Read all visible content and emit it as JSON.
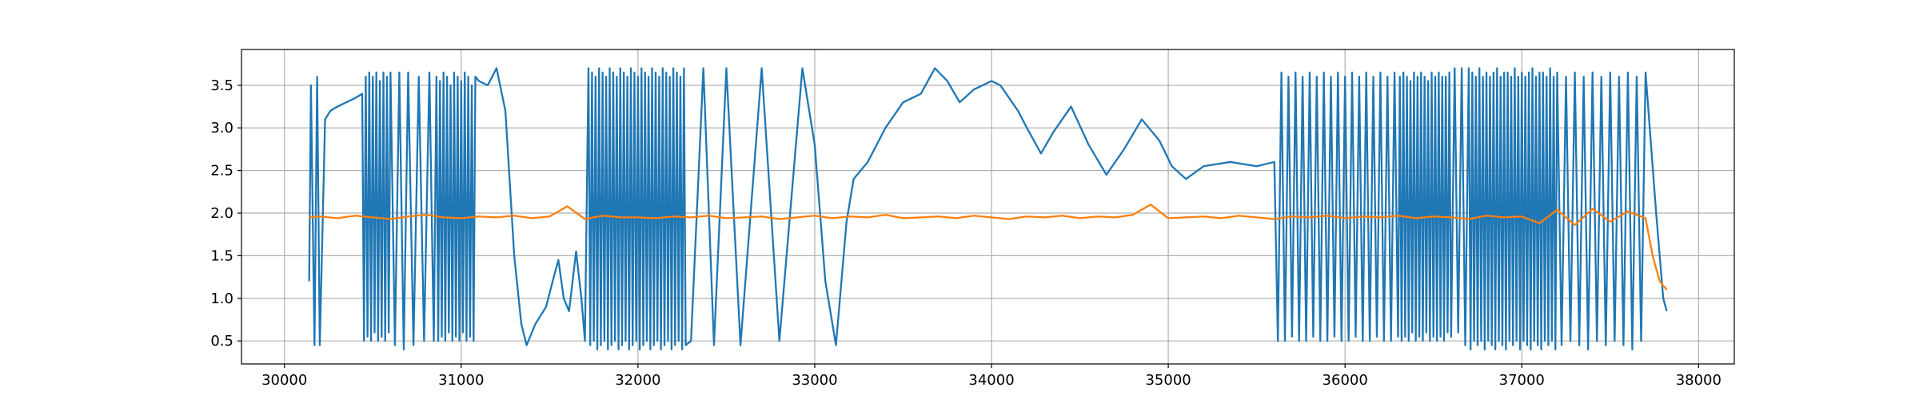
{
  "chart_data": {
    "type": "line",
    "xlim": [
      29757,
      38202
    ],
    "ylim": [
      0.23,
      3.92
    ],
    "xticks": [
      30000,
      31000,
      32000,
      33000,
      34000,
      35000,
      36000,
      37000,
      38000
    ],
    "yticks": [
      0.5,
      {
        "value": 1,
        "label": "1.0"
      },
      1.5,
      {
        "value": 2,
        "label": "2.0"
      },
      2.5,
      {
        "value": 3,
        "label": "3.0"
      },
      3.5
    ],
    "grid": true,
    "series": [
      {
        "color": "#1f77b4",
        "x": [
          30140,
          30150,
          30170,
          30185,
          30200,
          30230,
          30260,
          30300,
          30350,
          30400,
          30440,
          30450,
          30460,
          30470,
          30480,
          30490,
          30500,
          30510,
          30520,
          30530,
          30540,
          30550,
          30560,
          30570,
          30580,
          30590,
          30600,
          30625,
          30650,
          30675,
          30700,
          30730,
          30760,
          30790,
          30820,
          30845,
          30860,
          30870,
          30880,
          30890,
          30900,
          30910,
          30920,
          30930,
          30940,
          30950,
          30960,
          30970,
          30980,
          30990,
          31000,
          31010,
          31020,
          31030,
          31040,
          31050,
          31060,
          31070,
          31080,
          31100,
          31150,
          31200,
          31250,
          31300,
          31340,
          31370,
          31420,
          31480,
          31530,
          31550,
          31580,
          31610,
          31650,
          31680,
          31700,
          31720,
          31730,
          31740,
          31750,
          31760,
          31770,
          31780,
          31790,
          31800,
          31810,
          31820,
          31830,
          31840,
          31850,
          31860,
          31870,
          31880,
          31890,
          31900,
          31910,
          31920,
          31930,
          31940,
          31950,
          31960,
          31970,
          31980,
          31990,
          32000,
          32010,
          32020,
          32030,
          32040,
          32050,
          32060,
          32070,
          32080,
          32090,
          32100,
          32110,
          32120,
          32130,
          32140,
          32150,
          32160,
          32170,
          32180,
          32190,
          32200,
          32210,
          32220,
          32230,
          32240,
          32250,
          32260,
          32270,
          32300,
          32370,
          32430,
          32500,
          32580,
          32700,
          32800,
          32930,
          33000,
          33060,
          33120,
          33180,
          33220,
          33300,
          33400,
          33500,
          33600,
          33680,
          33750,
          33820,
          33900,
          34000,
          34050,
          34150,
          34200,
          34280,
          34350,
          34450,
          34550,
          34650,
          34750,
          34850,
          34950,
          35020,
          35100,
          35200,
          35350,
          35500,
          35600,
          35620,
          35640,
          35660,
          35680,
          35700,
          35720,
          35740,
          35760,
          35780,
          35800,
          35820,
          35840,
          35860,
          35880,
          35900,
          35920,
          35940,
          35960,
          35980,
          36000,
          36020,
          36040,
          36060,
          36080,
          36100,
          36120,
          36140,
          36160,
          36180,
          36200,
          36220,
          36240,
          36260,
          36280,
          36300,
          36310,
          36320,
          36330,
          36340,
          36350,
          36360,
          36370,
          36380,
          36390,
          36400,
          36410,
          36420,
          36430,
          36440,
          36450,
          36460,
          36470,
          36480,
          36490,
          36500,
          36510,
          36520,
          36530,
          36540,
          36550,
          36560,
          36570,
          36580,
          36590,
          36600,
          36620,
          36640,
          36660,
          36680,
          36700,
          36710,
          36720,
          36730,
          36740,
          36750,
          36760,
          36770,
          36780,
          36790,
          36800,
          36810,
          36820,
          36830,
          36840,
          36850,
          36860,
          36870,
          36880,
          36890,
          36900,
          36910,
          36920,
          36930,
          36940,
          36950,
          36960,
          36970,
          36980,
          36990,
          37000,
          37010,
          37020,
          37030,
          37040,
          37050,
          37060,
          37070,
          37080,
          37090,
          37100,
          37110,
          37120,
          37130,
          37140,
          37150,
          37160,
          37170,
          37180,
          37190,
          37200,
          37225,
          37250,
          37275,
          37300,
          37325,
          37350,
          37375,
          37400,
          37425,
          37450,
          37475,
          37500,
          37525,
          37550,
          37575,
          37600,
          37625,
          37650,
          37675,
          37700,
          37760,
          37800,
          37820
        ],
        "values": [
          1.2,
          3.5,
          0.45,
          3.6,
          0.45,
          3.1,
          3.2,
          3.25,
          3.3,
          3.35,
          3.4,
          0.5,
          3.6,
          0.55,
          3.65,
          0.5,
          3.6,
          0.6,
          3.65,
          0.5,
          3.55,
          0.55,
          3.65,
          0.5,
          3.6,
          0.6,
          3.65,
          0.45,
          3.65,
          0.4,
          3.65,
          0.45,
          3.6,
          0.5,
          3.65,
          0.5,
          3.6,
          0.5,
          3.55,
          0.55,
          3.65,
          0.5,
          3.6,
          0.6,
          3.5,
          0.5,
          3.65,
          0.55,
          3.6,
          0.5,
          3.55,
          0.6,
          3.65,
          0.5,
          3.6,
          0.55,
          3.5,
          0.5,
          3.6,
          3.55,
          3.5,
          3.7,
          3.2,
          1.5,
          0.7,
          0.45,
          0.7,
          0.9,
          1.3,
          1.45,
          1.0,
          0.85,
          1.55,
          1.0,
          0.5,
          3.7,
          0.45,
          3.65,
          0.5,
          3.6,
          0.4,
          3.7,
          0.45,
          3.65,
          0.5,
          3.6,
          0.4,
          3.7,
          0.45,
          3.65,
          0.5,
          3.6,
          0.4,
          3.7,
          0.45,
          3.65,
          0.5,
          3.6,
          0.4,
          3.7,
          0.45,
          3.65,
          0.5,
          3.6,
          0.4,
          3.7,
          0.45,
          3.65,
          0.5,
          3.6,
          0.4,
          3.7,
          0.45,
          3.65,
          0.5,
          3.6,
          0.4,
          3.7,
          0.45,
          3.65,
          0.5,
          3.6,
          0.4,
          3.7,
          0.45,
          3.65,
          0.5,
          3.6,
          0.4,
          3.7,
          0.45,
          0.5,
          3.7,
          0.45,
          3.7,
          0.45,
          3.7,
          0.5,
          3.7,
          2.8,
          1.2,
          0.45,
          1.9,
          2.4,
          2.6,
          3.0,
          3.3,
          3.4,
          3.7,
          3.55,
          3.3,
          3.45,
          3.55,
          3.5,
          3.2,
          3.0,
          2.7,
          2.95,
          3.25,
          2.8,
          2.45,
          2.75,
          3.1,
          2.85,
          2.55,
          2.4,
          2.55,
          2.6,
          2.55,
          2.6,
          0.5,
          3.65,
          0.5,
          3.6,
          0.55,
          3.65,
          0.5,
          3.6,
          0.5,
          3.65,
          0.55,
          3.6,
          0.5,
          3.65,
          0.5,
          3.6,
          0.55,
          3.65,
          0.5,
          3.6,
          0.5,
          3.65,
          0.55,
          3.6,
          0.5,
          3.65,
          0.5,
          3.6,
          0.55,
          3.65,
          0.5,
          3.6,
          0.5,
          3.65,
          0.55,
          3.6,
          0.5,
          3.65,
          0.55,
          3.6,
          0.5,
          3.55,
          0.6,
          3.65,
          0.5,
          3.6,
          0.55,
          3.65,
          0.5,
          3.6,
          0.6,
          3.55,
          0.5,
          3.65,
          0.55,
          3.6,
          0.5,
          3.65,
          0.55,
          3.6,
          0.5,
          3.6,
          0.6,
          3.65,
          0.55,
          3.7,
          0.6,
          3.7,
          0.45,
          3.7,
          0.4,
          3.65,
          0.5,
          3.6,
          0.45,
          3.7,
          0.5,
          3.6,
          0.4,
          3.65,
          0.5,
          3.6,
          0.45,
          3.65,
          0.4,
          3.7,
          0.5,
          3.6,
          0.45,
          3.65,
          0.4,
          3.65,
          0.5,
          3.6,
          0.45,
          3.7,
          0.5,
          3.6,
          0.4,
          3.65,
          0.5,
          3.6,
          0.45,
          3.65,
          0.4,
          3.7,
          0.5,
          3.6,
          0.45,
          3.65,
          0.4,
          3.65,
          0.5,
          3.6,
          0.45,
          3.7,
          0.5,
          3.6,
          0.4,
          3.65,
          0.45,
          3.6,
          0.5,
          3.65,
          0.45,
          3.6,
          0.4,
          3.65,
          0.5,
          3.6,
          0.45,
          3.65,
          0.5,
          3.6,
          0.45,
          3.65,
          0.4,
          3.6,
          0.5,
          3.65,
          2.0,
          1.0,
          0.85
        ]
      },
      {
        "color": "#ff7f0e",
        "x": [
          30140,
          30200,
          30300,
          30400,
          30500,
          30600,
          30700,
          30800,
          30900,
          31000,
          31100,
          31200,
          31300,
          31400,
          31500,
          31600,
          31700,
          31800,
          31900,
          32000,
          32100,
          32200,
          32300,
          32400,
          32500,
          32600,
          32700,
          32800,
          32900,
          33000,
          33100,
          33200,
          33300,
          33400,
          33500,
          33600,
          33700,
          33800,
          33900,
          34000,
          34100,
          34200,
          34300,
          34400,
          34500,
          34600,
          34700,
          34800,
          34900,
          35000,
          35100,
          35200,
          35300,
          35400,
          35500,
          35600,
          35700,
          35800,
          35900,
          36000,
          36100,
          36200,
          36300,
          36400,
          36500,
          36600,
          36700,
          36800,
          36900,
          37000,
          37100,
          37200,
          37300,
          37400,
          37500,
          37600,
          37700,
          37740,
          37780,
          37820
        ],
        "values": [
          1.95,
          1.96,
          1.94,
          1.97,
          1.95,
          1.93,
          1.96,
          1.98,
          1.95,
          1.94,
          1.96,
          1.95,
          1.97,
          1.94,
          1.96,
          2.08,
          1.93,
          1.97,
          1.95,
          1.95,
          1.94,
          1.96,
          1.95,
          1.97,
          1.94,
          1.95,
          1.96,
          1.93,
          1.95,
          1.97,
          1.94,
          1.96,
          1.95,
          1.98,
          1.94,
          1.95,
          1.96,
          1.94,
          1.97,
          1.95,
          1.93,
          1.96,
          1.95,
          1.97,
          1.94,
          1.96,
          1.95,
          1.98,
          2.1,
          1.94,
          1.95,
          1.96,
          1.94,
          1.97,
          1.95,
          1.93,
          1.96,
          1.95,
          1.97,
          1.94,
          1.96,
          1.95,
          1.97,
          1.94,
          1.96,
          1.95,
          1.93,
          1.97,
          1.95,
          1.96,
          1.88,
          2.04,
          1.86,
          2.05,
          1.9,
          2.02,
          1.94,
          1.5,
          1.2,
          1.1
        ]
      }
    ]
  }
}
